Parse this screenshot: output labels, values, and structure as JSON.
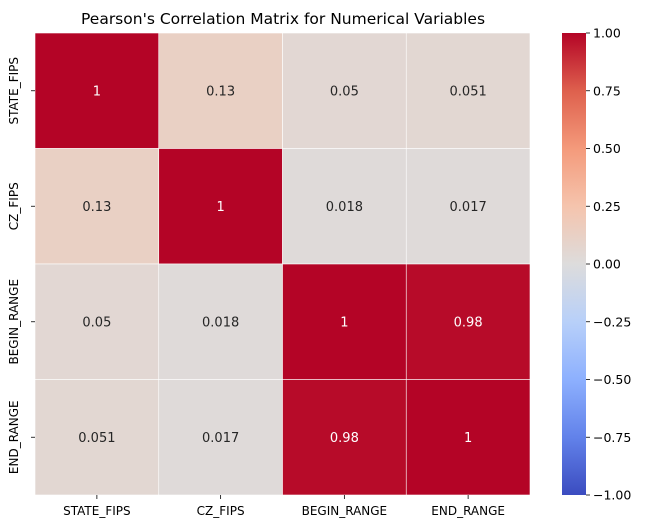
{
  "chart_data": {
    "type": "heatmap",
    "title": "Pearson's Correlation Matrix for Numerical Variables",
    "rows": [
      "STATE_FIPS",
      "CZ_FIPS",
      "BEGIN_RANGE",
      "END_RANGE"
    ],
    "columns": [
      "STATE_FIPS",
      "CZ_FIPS",
      "BEGIN_RANGE",
      "END_RANGE"
    ],
    "values": [
      [
        1,
        0.13,
        0.05,
        0.051
      ],
      [
        0.13,
        1,
        0.018,
        0.017
      ],
      [
        0.05,
        0.018,
        1,
        0.98
      ],
      [
        0.051,
        0.017,
        0.98,
        1
      ]
    ],
    "annotations": [
      [
        "1",
        "0.13",
        "0.05",
        "0.051"
      ],
      [
        "0.13",
        "1",
        "0.018",
        "0.017"
      ],
      [
        "0.05",
        "0.018",
        "1",
        "0.98"
      ],
      [
        "0.051",
        "0.017",
        "0.98",
        "1"
      ]
    ],
    "colormap": "coolwarm",
    "vmin": -1,
    "vmax": 1,
    "colorbar_ticks": [
      "1.00",
      "0.75",
      "0.50",
      "0.25",
      "0.00",
      "−0.25",
      "−0.50",
      "−0.75",
      "−1.00"
    ],
    "colorbar_tick_values": [
      1,
      0.75,
      0.5,
      0.25,
      0,
      -0.25,
      -0.5,
      -0.75,
      -1
    ],
    "colorbar_position": "right",
    "grid": false,
    "colors": {
      "high": "#b40426",
      "mid": "#dddcdc",
      "low": "#3b4cc0",
      "cell_border": "#ffffff"
    }
  }
}
